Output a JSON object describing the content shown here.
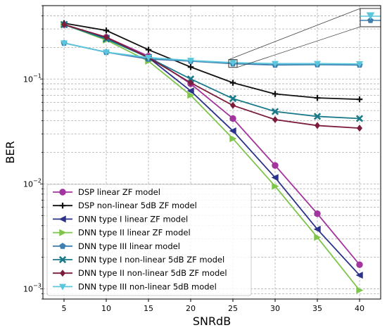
{
  "chart_data": {
    "type": "line",
    "title": "",
    "xlabel": "SNRdB",
    "ylabel": "BER",
    "yscale": "log",
    "x": [
      5,
      10,
      15,
      20,
      25,
      30,
      35,
      40
    ],
    "xlim": [
      2.5,
      42.5
    ],
    "ylim": [
      0.0008,
      0.5
    ],
    "xticks": [
      5,
      10,
      15,
      20,
      25,
      30,
      35,
      40
    ],
    "yticks": [
      {
        "value": 0.1,
        "base": "10",
        "exp": "−1"
      },
      {
        "value": 0.01,
        "base": "10",
        "exp": "−2"
      },
      {
        "value": 0.001,
        "base": "10",
        "exp": "−3"
      }
    ],
    "grid": true,
    "legend_position": "bottom-left",
    "inset": {
      "box_x": [
        24.5,
        25.5
      ],
      "box_y": [
        0.129,
        0.153
      ]
    },
    "series": [
      {
        "name": "DSP linear ZF model",
        "color": "#a3359e",
        "marker": "circle",
        "values": [
          0.33,
          0.25,
          0.165,
          0.09,
          0.042,
          0.015,
          0.0052,
          0.0017
        ]
      },
      {
        "name": "DSP non-linear 5dB ZF model",
        "color": "#111111",
        "marker": "plus",
        "values": [
          0.34,
          0.29,
          0.19,
          0.13,
          0.092,
          0.072,
          0.066,
          0.064
        ]
      },
      {
        "name": "DNN type I linear ZF model",
        "color": "#2b3289",
        "marker": "triangle-left",
        "values": [
          0.33,
          0.245,
          0.16,
          0.077,
          0.032,
          0.0115,
          0.0037,
          0.00135
        ]
      },
      {
        "name": "DNN type II linear ZF model",
        "color": "#7ec64a",
        "marker": "triangle-right",
        "values": [
          0.33,
          0.235,
          0.148,
          0.07,
          0.027,
          0.0095,
          0.0031,
          0.00097
        ]
      },
      {
        "name": "DNN type III linear model",
        "color": "#3f7fb0",
        "marker": "pentagon",
        "values": [
          0.22,
          0.18,
          0.155,
          0.148,
          0.14,
          0.136,
          0.137,
          0.136
        ]
      },
      {
        "name": "DNN type I non-linear 5dB ZF model",
        "color": "#1a7a8a",
        "marker": "x",
        "values": [
          0.33,
          0.24,
          0.16,
          0.1,
          0.065,
          0.049,
          0.044,
          0.042
        ]
      },
      {
        "name": "DNN type II non-linear 5dB ZF model",
        "color": "#7b1c3b",
        "marker": "diamond",
        "values": [
          0.33,
          0.25,
          0.16,
          0.092,
          0.056,
          0.041,
          0.036,
          0.034
        ]
      },
      {
        "name": "DNN type III non-linear 5dB model",
        "color": "#5bc6dc",
        "marker": "triangle-down",
        "values": [
          0.22,
          0.18,
          0.16,
          0.15,
          0.143,
          0.14,
          0.14,
          0.139
        ]
      }
    ]
  }
}
